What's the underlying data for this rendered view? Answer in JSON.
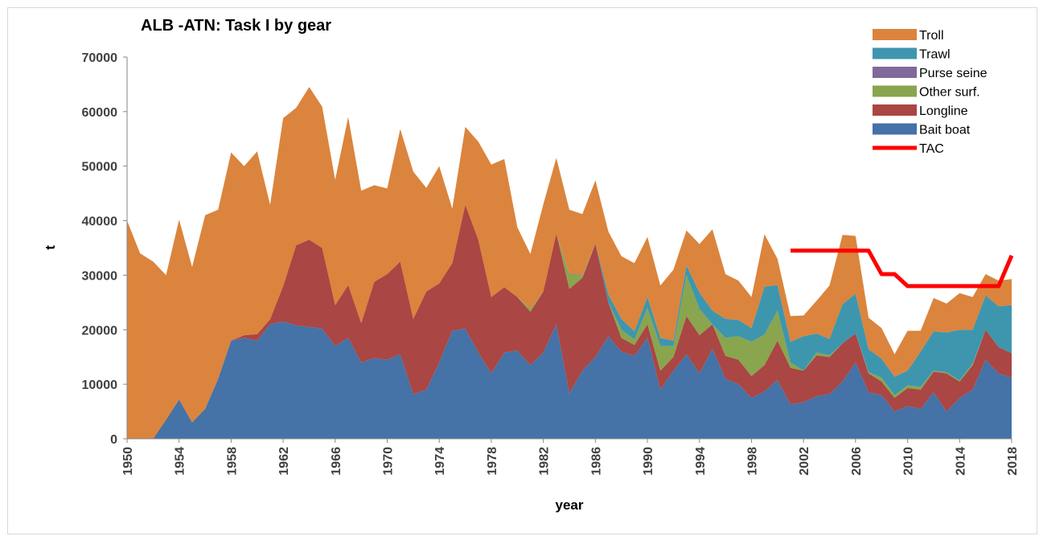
{
  "chart_data": {
    "type": "area",
    "stacked": true,
    "title": "ALB -ATN: Task I by gear",
    "xlabel": "year",
    "ylabel": "t",
    "ylim": [
      0,
      70000
    ],
    "yticks": [
      0,
      10000,
      20000,
      30000,
      40000,
      50000,
      60000,
      70000
    ],
    "xlim": [
      1950,
      2018
    ],
    "xticks": [
      1950,
      1954,
      1958,
      1962,
      1966,
      1970,
      1974,
      1978,
      1982,
      1986,
      1990,
      1994,
      1998,
      2002,
      2006,
      2010,
      2014,
      2018
    ],
    "grid": false,
    "legend_position": "top-right",
    "years": [
      1950,
      1951,
      1952,
      1953,
      1954,
      1955,
      1956,
      1957,
      1958,
      1959,
      1960,
      1961,
      1962,
      1963,
      1964,
      1965,
      1966,
      1967,
      1968,
      1969,
      1970,
      1971,
      1972,
      1973,
      1974,
      1975,
      1976,
      1977,
      1978,
      1979,
      1980,
      1981,
      1982,
      1983,
      1984,
      1985,
      1986,
      1987,
      1988,
      1989,
      1990,
      1991,
      1992,
      1993,
      1994,
      1995,
      1996,
      1997,
      1998,
      1999,
      2000,
      2001,
      2002,
      2003,
      2004,
      2005,
      2006,
      2007,
      2008,
      2009,
      2010,
      2011,
      2012,
      2013,
      2014,
      2015,
      2016,
      2017,
      2018
    ],
    "series": [
      {
        "name": "Bait boat",
        "color": "#4572a7",
        "values": [
          0,
          0,
          0,
          3500,
          7200,
          3000,
          5500,
          11000,
          18000,
          18500,
          18000,
          21000,
          21500,
          20800,
          20500,
          20200,
          17000,
          18500,
          14000,
          14800,
          14500,
          15500,
          8200,
          9000,
          14000,
          19800,
          20200,
          15800,
          12000,
          15800,
          16200,
          13500,
          15800,
          21000,
          8300,
          12500,
          15000,
          18800,
          16000,
          15200,
          18500,
          9000,
          12500,
          15500,
          12000,
          16500,
          11000,
          10000,
          7500,
          8700,
          10800,
          6300,
          6700,
          7800,
          8200,
          10500,
          14000,
          8500,
          8000,
          5000,
          6000,
          5500,
          8500,
          5000,
          7500,
          9000,
          14500,
          12000,
          11200
        ]
      },
      {
        "name": "Longline",
        "color": "#aa4643",
        "values": [
          0,
          0,
          0,
          0,
          0,
          0,
          0,
          0,
          0,
          500,
          1200,
          900,
          6500,
          14700,
          16000,
          14800,
          7500,
          9700,
          7200,
          14000,
          15700,
          17000,
          13800,
          18000,
          14500,
          12400,
          22700,
          20700,
          14000,
          12000,
          9800,
          9800,
          11200,
          16700,
          19200,
          17000,
          20800,
          6200,
          2500,
          2000,
          2500,
          3500,
          2500,
          7000,
          7000,
          4500,
          4200,
          4500,
          4000,
          4800,
          7200,
          6700,
          5800,
          7500,
          6800,
          7000,
          5300,
          3500,
          2500,
          2500,
          3300,
          3500,
          3800,
          7000,
          3000,
          4500,
          5500,
          4800,
          4500
        ]
      },
      {
        "name": "Other surf.",
        "color": "#89a54e",
        "values": [
          0,
          0,
          0,
          0,
          0,
          0,
          0,
          0,
          0,
          0,
          0,
          0,
          0,
          0,
          0,
          0,
          0,
          0,
          0,
          0,
          0,
          0,
          0,
          0,
          0,
          0,
          0,
          0,
          0,
          0,
          0,
          600,
          0,
          0,
          2700,
          500,
          0,
          0,
          1500,
          1000,
          3000,
          4500,
          2000,
          7500,
          4800,
          0,
          3300,
          4300,
          6300,
          5600,
          5500,
          1000,
          0,
          500,
          300,
          0,
          0,
          200,
          700,
          500,
          500,
          500,
          200,
          200,
          200,
          300,
          0,
          0,
          0
        ]
      },
      {
        "name": "Purse seine",
        "color": "#80699b",
        "values": [
          0,
          0,
          0,
          0,
          0,
          0,
          0,
          0,
          0,
          0,
          0,
          0,
          0,
          0,
          0,
          0,
          0,
          0,
          0,
          0,
          0,
          0,
          0,
          0,
          0,
          0,
          0,
          0,
          0,
          0,
          0,
          0,
          0,
          0,
          100,
          100,
          0,
          0,
          0,
          0,
          0,
          0,
          0,
          0,
          0,
          0,
          0,
          0,
          0,
          0,
          0,
          0,
          0,
          0,
          0,
          0,
          0,
          0,
          0,
          0,
          0,
          0,
          0,
          0,
          0,
          0,
          0,
          0,
          0
        ]
      },
      {
        "name": "Trawl",
        "color": "#3d96ae",
        "values": [
          0,
          0,
          0,
          0,
          0,
          0,
          0,
          0,
          0,
          0,
          0,
          0,
          0,
          0,
          0,
          0,
          0,
          0,
          0,
          0,
          0,
          0,
          0,
          0,
          0,
          0,
          0,
          0,
          0,
          0,
          0,
          0,
          0,
          0,
          0,
          0,
          0,
          1500,
          2000,
          1500,
          2000,
          1500,
          1000,
          1800,
          3000,
          2500,
          3500,
          3000,
          2500,
          8800,
          4700,
          3800,
          6300,
          3500,
          3000,
          7200,
          7300,
          4200,
          3500,
          3400,
          2700,
          6500,
          7200,
          7300,
          9300,
          6200,
          6300,
          7500,
          8800
        ]
      },
      {
        "name": "Troll",
        "color": "#db843d",
        "values": [
          40000,
          34000,
          32500,
          26500,
          33000,
          28500,
          35500,
          31000,
          34500,
          31000,
          33500,
          21000,
          30800,
          25200,
          28000,
          25900,
          23000,
          30800,
          24300,
          17700,
          15700,
          24300,
          27000,
          19000,
          21500,
          10000,
          14300,
          18000,
          24300,
          23500,
          12800,
          10000,
          16000,
          13800,
          11700,
          11100,
          11600,
          11500,
          11500,
          12500,
          11000,
          9600,
          13000,
          6400,
          8900,
          14900,
          8200,
          7200,
          5700,
          9600,
          4800,
          4700,
          3800,
          6000,
          9800,
          12700,
          10600,
          5800,
          5600,
          4100,
          7300,
          3800,
          6100,
          5300,
          6700,
          6000,
          3900,
          4700,
          4800
        ]
      }
    ],
    "lines": [
      {
        "name": "TAC",
        "color": "#ff0000",
        "x": [
          2001,
          2007,
          2008,
          2009,
          2010,
          2017,
          2018
        ],
        "y": [
          34500,
          34500,
          30200,
          30200,
          28000,
          28000,
          33600
        ]
      }
    ],
    "legend": [
      "Troll",
      "Trawl",
      "Purse seine",
      "Other surf.",
      "Longline",
      "Bait boat",
      "TAC"
    ]
  }
}
